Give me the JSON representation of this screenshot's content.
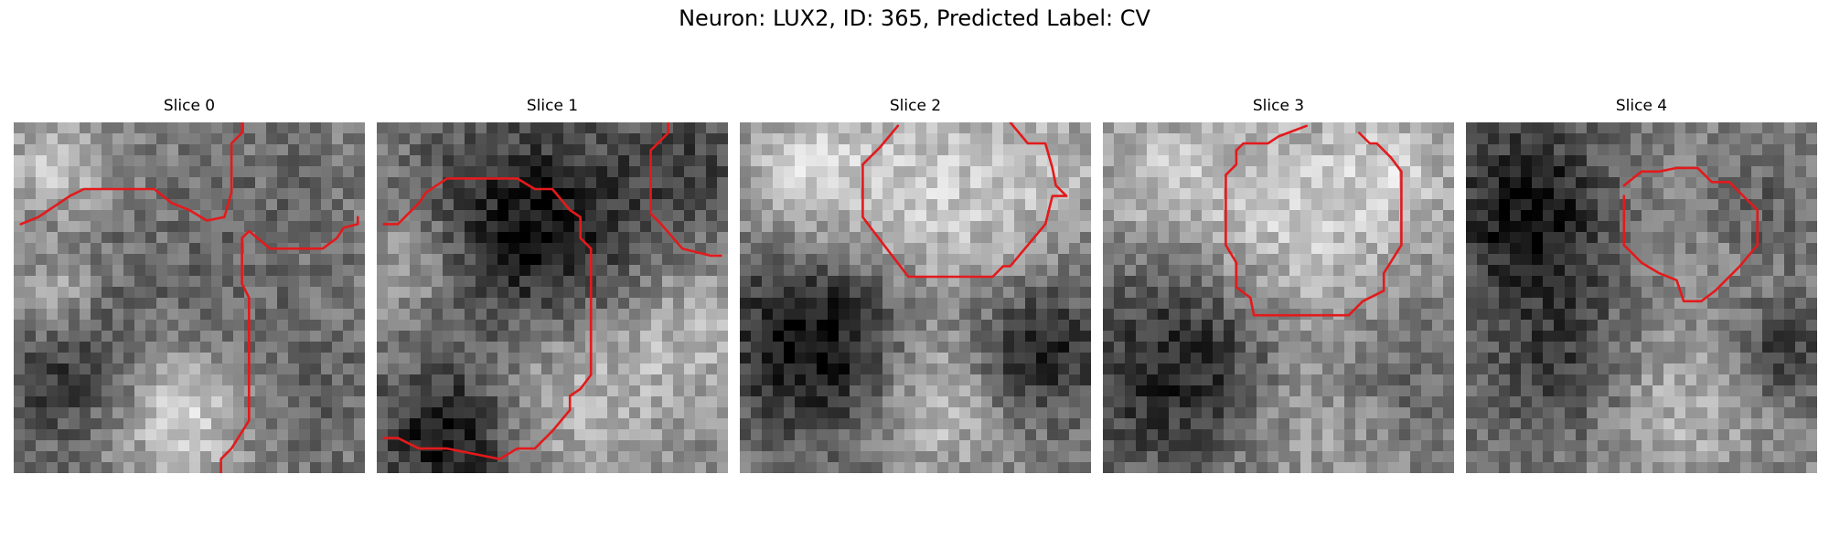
{
  "figure": {
    "title": "Neuron: LUX2, ID: 365, Predicted Label: CV"
  },
  "slices": [
    {
      "title": "Slice 0",
      "seed": 11,
      "blobs": [
        [
          0.12,
          0.12,
          0.1,
          0.28
        ],
        [
          0.12,
          0.5,
          0.1,
          0.3
        ],
        [
          0.15,
          0.68,
          0.18,
          -0.3
        ],
        [
          0.48,
          0.83,
          0.14,
          0.38
        ],
        [
          0.55,
          0.4,
          0.22,
          -0.08
        ],
        [
          0.82,
          0.78,
          0.18,
          -0.12
        ],
        [
          0.8,
          0.2,
          0.14,
          -0.06
        ]
      ]
    },
    {
      "title": "Slice 1",
      "seed": 23,
      "blobs": [
        [
          0.45,
          0.32,
          0.24,
          -0.45
        ],
        [
          0.2,
          0.9,
          0.14,
          -0.45
        ],
        [
          0.1,
          0.4,
          0.12,
          0.22
        ],
        [
          0.55,
          0.75,
          0.2,
          0.25
        ],
        [
          0.9,
          0.12,
          0.12,
          -0.2
        ],
        [
          0.9,
          0.6,
          0.16,
          0.2
        ]
      ]
    },
    {
      "title": "Slice 2",
      "seed": 37,
      "blobs": [
        [
          0.55,
          0.22,
          0.25,
          0.3
        ],
        [
          0.18,
          0.15,
          0.14,
          0.25
        ],
        [
          0.22,
          0.62,
          0.2,
          -0.5
        ],
        [
          0.85,
          0.65,
          0.14,
          -0.4
        ],
        [
          0.55,
          0.8,
          0.14,
          0.3
        ],
        [
          0.9,
          0.12,
          0.1,
          0.15
        ]
      ]
    },
    {
      "title": "Slice 3",
      "seed": 41,
      "blobs": [
        [
          0.55,
          0.28,
          0.24,
          0.32
        ],
        [
          0.25,
          0.7,
          0.22,
          -0.42
        ],
        [
          0.55,
          0.85,
          0.18,
          0.2
        ],
        [
          0.85,
          0.7,
          0.14,
          -0.15
        ],
        [
          0.15,
          0.15,
          0.14,
          0.2
        ],
        [
          0.85,
          0.12,
          0.12,
          0.18
        ]
      ]
    },
    {
      "title": "Slice 4",
      "seed": 53,
      "blobs": [
        [
          0.18,
          0.25,
          0.18,
          -0.45
        ],
        [
          0.6,
          0.3,
          0.18,
          0.08
        ],
        [
          0.85,
          0.25,
          0.12,
          -0.15
        ],
        [
          0.3,
          0.7,
          0.18,
          -0.3
        ],
        [
          0.55,
          0.8,
          0.18,
          0.25
        ],
        [
          0.9,
          0.65,
          0.1,
          -0.3
        ]
      ]
    }
  ],
  "contours": [
    [
      [
        [
          0.02,
          0.29
        ],
        [
          0.07,
          0.27
        ],
        [
          0.1,
          0.25
        ],
        [
          0.13,
          0.23
        ],
        [
          0.16,
          0.21
        ],
        [
          0.2,
          0.19
        ],
        [
          0.4,
          0.19
        ],
        [
          0.45,
          0.23
        ],
        [
          0.5,
          0.25
        ],
        [
          0.55,
          0.28
        ],
        [
          0.6,
          0.27
        ],
        [
          0.62,
          0.2
        ],
        [
          0.62,
          0.06
        ],
        [
          0.65,
          0.03
        ],
        [
          0.65,
          0.0
        ]
      ],
      [
        [
          0.59,
          1.0
        ],
        [
          0.59,
          0.96
        ],
        [
          0.62,
          0.93
        ],
        [
          0.67,
          0.85
        ],
        [
          0.67,
          0.5
        ],
        [
          0.65,
          0.46
        ],
        [
          0.65,
          0.33
        ],
        [
          0.67,
          0.31
        ],
        [
          0.73,
          0.36
        ],
        [
          0.88,
          0.36
        ],
        [
          0.92,
          0.33
        ],
        [
          0.94,
          0.3
        ],
        [
          0.98,
          0.29
        ],
        [
          0.98,
          0.27
        ]
      ]
    ],
    [
      [
        [
          0.02,
          0.29
        ],
        [
          0.06,
          0.29
        ],
        [
          0.12,
          0.23
        ],
        [
          0.14,
          0.2
        ],
        [
          0.17,
          0.18
        ],
        [
          0.2,
          0.16
        ],
        [
          0.4,
          0.16
        ],
        [
          0.45,
          0.19
        ],
        [
          0.5,
          0.19
        ],
        [
          0.55,
          0.25
        ],
        [
          0.58,
          0.27
        ],
        [
          0.58,
          0.33
        ],
        [
          0.61,
          0.36
        ],
        [
          0.61,
          0.72
        ],
        [
          0.58,
          0.76
        ],
        [
          0.55,
          0.78
        ],
        [
          0.55,
          0.82
        ],
        [
          0.5,
          0.88
        ],
        [
          0.45,
          0.93
        ],
        [
          0.4,
          0.93
        ],
        [
          0.35,
          0.96
        ],
        [
          0.2,
          0.93
        ],
        [
          0.12,
          0.93
        ],
        [
          0.06,
          0.9
        ],
        [
          0.02,
          0.9
        ]
      ],
      [
        [
          0.83,
          0.0
        ],
        [
          0.83,
          0.03
        ],
        [
          0.78,
          0.08
        ],
        [
          0.78,
          0.26
        ],
        [
          0.81,
          0.29
        ],
        [
          0.87,
          0.36
        ],
        [
          0.95,
          0.38
        ],
        [
          0.98,
          0.38
        ]
      ]
    ],
    [
      [
        [
          0.45,
          0.01
        ],
        [
          0.4,
          0.07
        ],
        [
          0.35,
          0.12
        ],
        [
          0.35,
          0.27
        ],
        [
          0.38,
          0.31
        ],
        [
          0.48,
          0.44
        ],
        [
          0.72,
          0.44
        ],
        [
          0.75,
          0.41
        ],
        [
          0.77,
          0.41
        ],
        [
          0.87,
          0.29
        ],
        [
          0.89,
          0.21
        ],
        [
          0.93,
          0.21
        ],
        [
          0.9,
          0.18
        ],
        [
          0.89,
          0.13
        ],
        [
          0.87,
          0.06
        ],
        [
          0.82,
          0.06
        ],
        [
          0.77,
          0.0
        ]
      ]
    ],
    [
      [
        [
          0.58,
          0.01
        ],
        [
          0.5,
          0.04
        ],
        [
          0.47,
          0.06
        ],
        [
          0.4,
          0.06
        ],
        [
          0.38,
          0.08
        ],
        [
          0.38,
          0.12
        ],
        [
          0.35,
          0.15
        ],
        [
          0.35,
          0.35
        ],
        [
          0.38,
          0.4
        ],
        [
          0.38,
          0.47
        ],
        [
          0.42,
          0.5
        ],
        [
          0.43,
          0.55
        ],
        [
          0.7,
          0.55
        ],
        [
          0.74,
          0.51
        ],
        [
          0.8,
          0.48
        ],
        [
          0.8,
          0.43
        ],
        [
          0.85,
          0.35
        ],
        [
          0.85,
          0.14
        ],
        [
          0.82,
          0.1
        ],
        [
          0.78,
          0.06
        ],
        [
          0.76,
          0.06
        ],
        [
          0.73,
          0.03
        ]
      ]
    ],
    [
      [
        [
          0.45,
          0.18
        ],
        [
          0.5,
          0.14
        ],
        [
          0.55,
          0.14
        ],
        [
          0.6,
          0.13
        ],
        [
          0.66,
          0.13
        ],
        [
          0.7,
          0.17
        ],
        [
          0.75,
          0.17
        ],
        [
          0.8,
          0.22
        ],
        [
          0.83,
          0.25
        ],
        [
          0.83,
          0.35
        ],
        [
          0.78,
          0.41
        ],
        [
          0.71,
          0.48
        ],
        [
          0.67,
          0.51
        ],
        [
          0.62,
          0.51
        ],
        [
          0.6,
          0.45
        ],
        [
          0.55,
          0.43
        ],
        [
          0.5,
          0.4
        ],
        [
          0.45,
          0.35
        ],
        [
          0.45,
          0.21
        ]
      ]
    ]
  ],
  "contour_color": "#e31a1c",
  "grid_size": 32
}
